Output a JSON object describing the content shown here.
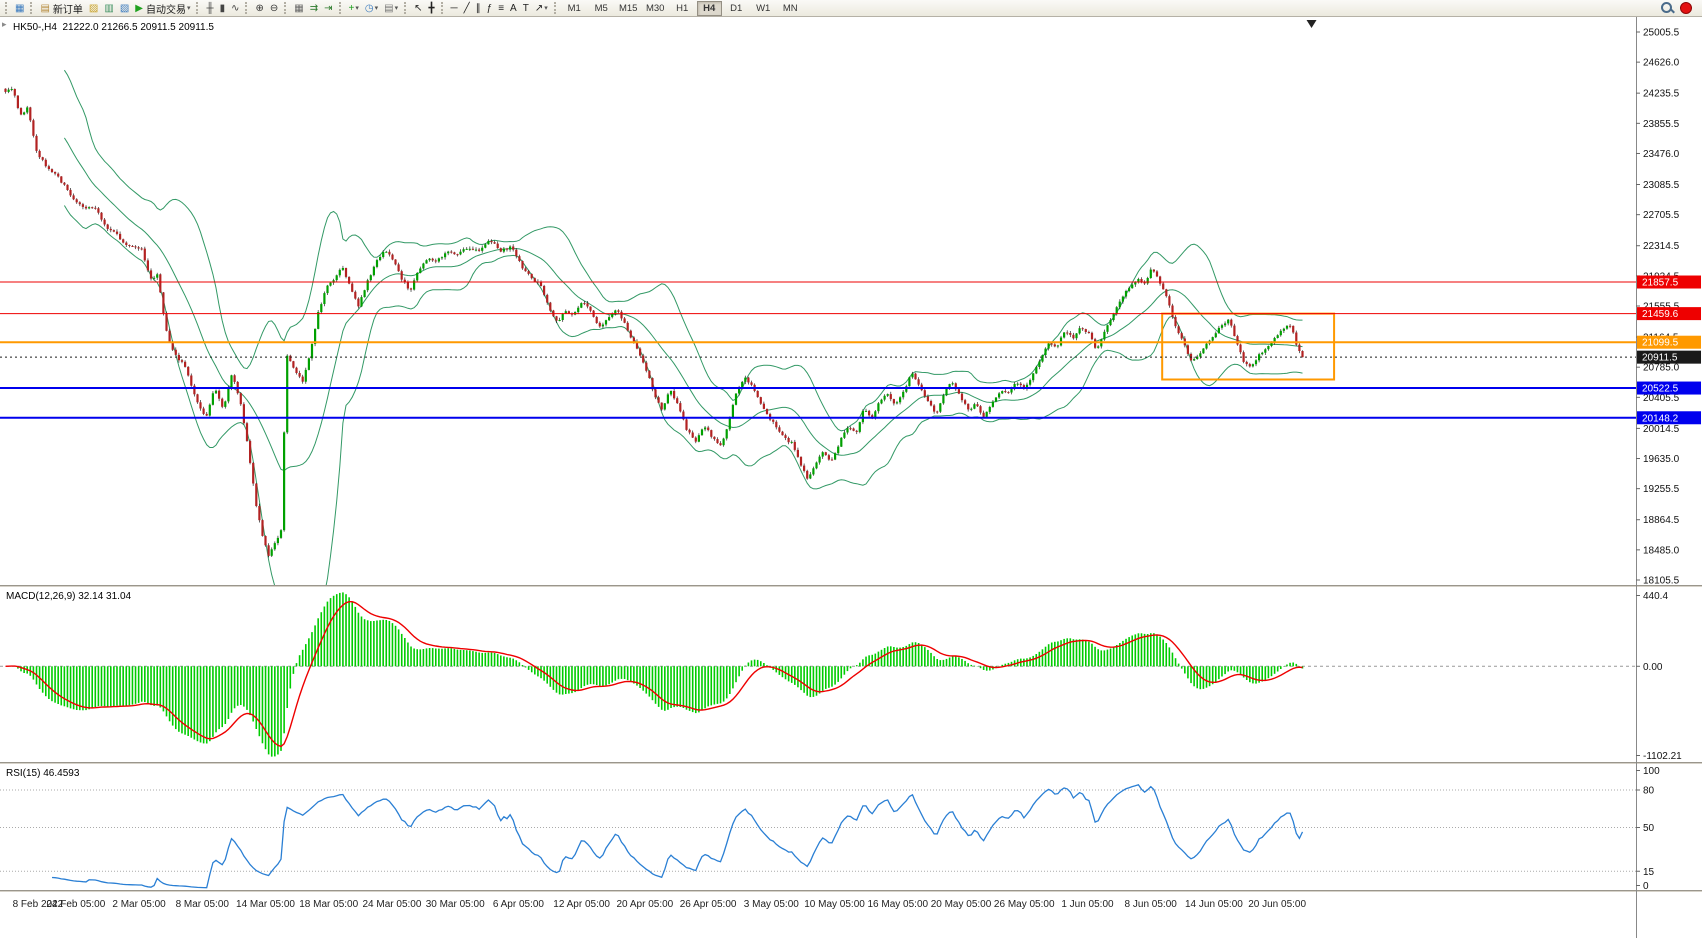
{
  "toolbar": {
    "groups": [
      {
        "items": [
          {
            "name": "new-chart",
            "glyph": "▦",
            "color": "#3a7abf",
            "caret": false
          }
        ]
      },
      {
        "items": [
          {
            "name": "new-order",
            "glyph": "▤",
            "color": "#b5893a",
            "label": "新订单"
          },
          {
            "name": "metaeditor",
            "glyph": "▨",
            "color": "#c9a227"
          },
          {
            "name": "market-watch",
            "glyph": "▥",
            "color": "#3a8f5f"
          },
          {
            "name": "navigator",
            "glyph": "▧",
            "color": "#3a7abf"
          },
          {
            "name": "auto-trading",
            "glyph": "▶",
            "color": "#1fa11f",
            "label": "自动交易",
            "caret": true
          }
        ]
      },
      {
        "items": [
          {
            "name": "bar-chart-mode",
            "glyph": "╫",
            "color": "#444"
          },
          {
            "name": "candlestick-mode",
            "glyph": "▮",
            "color": "#444"
          },
          {
            "name": "line-chart-mode",
            "glyph": "∿",
            "color": "#444"
          }
        ]
      },
      {
        "items": [
          {
            "name": "zoom-in",
            "glyph": "⊕",
            "color": "#333"
          },
          {
            "name": "zoom-out",
            "glyph": "⊖",
            "color": "#333"
          }
        ]
      },
      {
        "items": [
          {
            "name": "tile-windows",
            "glyph": "▦",
            "color": "#666"
          },
          {
            "name": "auto-scroll",
            "glyph": "⇉",
            "color": "#2c7a2c"
          },
          {
            "name": "chart-shift",
            "glyph": "⇥",
            "color": "#2c7a2c"
          }
        ]
      },
      {
        "items": [
          {
            "name": "indicators",
            "glyph": "+",
            "color": "#1fa11f",
            "caret": true
          },
          {
            "name": "periods",
            "glyph": "◷",
            "color": "#3a7abf",
            "caret": true
          },
          {
            "name": "templates",
            "glyph": "▤",
            "color": "#777",
            "caret": true
          }
        ]
      },
      {
        "items": [
          {
            "name": "cursor",
            "glyph": "↖",
            "color": "#222"
          },
          {
            "name": "crosshair",
            "glyph": "╋",
            "color": "#222"
          }
        ]
      },
      {
        "items": [
          {
            "name": "horizontal-line-tool",
            "glyph": "─",
            "color": "#222"
          },
          {
            "name": "trendline-tool",
            "glyph": "╱",
            "color": "#222"
          },
          {
            "name": "channel-tool",
            "glyph": "∥",
            "color": "#222"
          },
          {
            "name": "fibonacci-tool",
            "glyph": "ƒ",
            "color": "#222"
          },
          {
            "name": "ruler-tool",
            "glyph": "≡",
            "color": "#222"
          },
          {
            "name": "text-tool",
            "glyph": "A",
            "color": "#222"
          },
          {
            "name": "text-label-tool",
            "glyph": "T",
            "color": "#222"
          },
          {
            "name": "arrows-tool",
            "glyph": "↗",
            "color": "#222",
            "caret": true
          }
        ]
      }
    ],
    "timeframes": [
      "M1",
      "M5",
      "M15",
      "M30",
      "H1",
      "H4",
      "D1",
      "W1",
      "MN"
    ],
    "active_timeframe": "H4"
  },
  "chart_data": {
    "type": "candlestick",
    "symbol": "HK50-",
    "timeframe": "H4",
    "header": "HK50-,H4",
    "ohlc_line": "21222.0 21266.5 20911.5 20911.5",
    "y_range": [
      18105.5,
      25005.5
    ],
    "y_ticks": [
      "25005.5",
      "24626.0",
      "24235.5",
      "23855.5",
      "23476.0",
      "23085.5",
      "22705.5",
      "22314.5",
      "21934.5",
      "21555.5",
      "21164.5",
      "20785.0",
      "20405.5",
      "20014.5",
      "19635.0",
      "19255.5",
      "18864.5",
      "18485.0",
      "18105.5"
    ],
    "x_labels": [
      "8 Feb 2022",
      "24 Feb 05:00",
      "2 Mar 05:00",
      "8 Mar 05:00",
      "14 Mar 05:00",
      "18 Mar 05:00",
      "24 Mar 05:00",
      "30 Mar 05:00",
      "6 Apr 05:00",
      "12 Apr 05:00",
      "20 Apr 05:00",
      "26 Apr 05:00",
      "3 May 05:00",
      "10 May 05:00",
      "16 May 05:00",
      "20 May 05:00",
      "26 May 05:00",
      "1 Jun 05:00",
      "8 Jun 05:00",
      "14 Jun 05:00",
      "20 Jun 05:00"
    ],
    "bars_total": 420,
    "last_close": 20911.5,
    "up_color": "#00a000",
    "down_color": "#b22222",
    "close_path_keypoints": [
      [
        0,
        24250
      ],
      [
        8,
        24300
      ],
      [
        15,
        23950
      ],
      [
        22,
        24050
      ],
      [
        30,
        23500
      ],
      [
        40,
        23300
      ],
      [
        52,
        23150
      ],
      [
        62,
        22950
      ],
      [
        72,
        22800
      ],
      [
        85,
        22780
      ],
      [
        95,
        22550
      ],
      [
        105,
        22450
      ],
      [
        115,
        22300
      ],
      [
        128,
        22280
      ],
      [
        136,
        21900
      ],
      [
        143,
        21950
      ],
      [
        150,
        21300
      ],
      [
        158,
        20950
      ],
      [
        168,
        20820
      ],
      [
        178,
        20400
      ],
      [
        188,
        20150
      ],
      [
        196,
        20550
      ],
      [
        204,
        20250
      ],
      [
        212,
        20700
      ],
      [
        220,
        20350
      ],
      [
        228,
        19700
      ],
      [
        234,
        19100
      ],
      [
        240,
        18700
      ],
      [
        246,
        18400
      ],
      [
        252,
        18550
      ],
      [
        258,
        18750
      ],
      [
        263,
        20950
      ],
      [
        270,
        20750
      ],
      [
        278,
        20600
      ],
      [
        285,
        20950
      ],
      [
        292,
        21450
      ],
      [
        300,
        21800
      ],
      [
        308,
        21900
      ],
      [
        315,
        22050
      ],
      [
        322,
        21800
      ],
      [
        330,
        21550
      ],
      [
        338,
        21850
      ],
      [
        346,
        22100
      ],
      [
        354,
        22250
      ],
      [
        362,
        22150
      ],
      [
        370,
        21900
      ],
      [
        378,
        21750
      ],
      [
        386,
        22000
      ],
      [
        394,
        22150
      ],
      [
        402,
        22100
      ],
      [
        412,
        22250
      ],
      [
        422,
        22200
      ],
      [
        432,
        22300
      ],
      [
        442,
        22250
      ],
      [
        452,
        22400
      ],
      [
        462,
        22250
      ],
      [
        472,
        22300
      ],
      [
        482,
        22050
      ],
      [
        492,
        21900
      ],
      [
        500,
        21800
      ],
      [
        508,
        21500
      ],
      [
        515,
        21350
      ],
      [
        522,
        21500
      ],
      [
        530,
        21450
      ],
      [
        538,
        21620
      ],
      [
        546,
        21500
      ],
      [
        554,
        21300
      ],
      [
        562,
        21380
      ],
      [
        570,
        21520
      ],
      [
        578,
        21320
      ],
      [
        588,
        21050
      ],
      [
        598,
        20750
      ],
      [
        606,
        20400
      ],
      [
        613,
        20250
      ],
      [
        620,
        20500
      ],
      [
        628,
        20300
      ],
      [
        636,
        19980
      ],
      [
        644,
        19850
      ],
      [
        652,
        20050
      ],
      [
        660,
        19880
      ],
      [
        668,
        19800
      ],
      [
        675,
        20120
      ],
      [
        682,
        20500
      ],
      [
        690,
        20650
      ],
      [
        698,
        20520
      ],
      [
        706,
        20280
      ],
      [
        712,
        20150
      ],
      [
        718,
        20050
      ],
      [
        726,
        19900
      ],
      [
        734,
        19820
      ],
      [
        741,
        19580
      ],
      [
        748,
        19380
      ],
      [
        755,
        19560
      ],
      [
        762,
        19700
      ],
      [
        770,
        19600
      ],
      [
        778,
        19850
      ],
      [
        786,
        20050
      ],
      [
        793,
        19950
      ],
      [
        800,
        20250
      ],
      [
        808,
        20150
      ],
      [
        815,
        20350
      ],
      [
        822,
        20450
      ],
      [
        830,
        20300
      ],
      [
        838,
        20500
      ],
      [
        845,
        20720
      ],
      [
        852,
        20550
      ],
      [
        860,
        20350
      ],
      [
        868,
        20200
      ],
      [
        875,
        20450
      ],
      [
        882,
        20600
      ],
      [
        890,
        20420
      ],
      [
        898,
        20250
      ],
      [
        905,
        20320
      ],
      [
        912,
        20150
      ],
      [
        920,
        20350
      ],
      [
        928,
        20500
      ],
      [
        935,
        20450
      ],
      [
        942,
        20600
      ],
      [
        950,
        20500
      ],
      [
        958,
        20700
      ],
      [
        965,
        20900
      ],
      [
        972,
        21100
      ],
      [
        980,
        21050
      ],
      [
        988,
        21250
      ],
      [
        995,
        21150
      ],
      [
        1002,
        21300
      ],
      [
        1010,
        21200
      ],
      [
        1017,
        21000
      ],
      [
        1025,
        21250
      ],
      [
        1032,
        21450
      ],
      [
        1040,
        21650
      ],
      [
        1048,
        21800
      ],
      [
        1055,
        21900
      ],
      [
        1062,
        21830
      ],
      [
        1068,
        22020
      ],
      [
        1075,
        21880
      ],
      [
        1082,
        21680
      ],
      [
        1090,
        21320
      ],
      [
        1098,
        21080
      ],
      [
        1105,
        20850
      ],
      [
        1112,
        20950
      ],
      [
        1118,
        21050
      ],
      [
        1125,
        21150
      ],
      [
        1132,
        21300
      ],
      [
        1140,
        21380
      ],
      [
        1148,
        21080
      ],
      [
        1155,
        20820
      ],
      [
        1162,
        20800
      ],
      [
        1168,
        20950
      ],
      [
        1175,
        21020
      ],
      [
        1182,
        21150
      ],
      [
        1190,
        21260
      ],
      [
        1198,
        21320
      ],
      [
        1204,
        21000
      ],
      [
        1210,
        20911.5
      ]
    ],
    "bollinger": {
      "period": 20,
      "deviation": 2,
      "color": "#339966"
    },
    "horizontal_lines": [
      {
        "label": "21857.5",
        "price": 21857.5,
        "color": "#ee0000",
        "style": "solid",
        "width": 1
      },
      {
        "label": "21459.6",
        "price": 21459.6,
        "color": "#ee0000",
        "style": "solid",
        "width": 1
      },
      {
        "label": "21099.5",
        "price": 21099.5,
        "color": "#ff9900",
        "style": "solid",
        "width": 2
      },
      {
        "label": "20911.5",
        "price": 20911.5,
        "color": "#1a1a1a",
        "style": "dotted",
        "width": 1
      },
      {
        "label": "20522.5",
        "price": 20522.5,
        "color": "#0000ee",
        "style": "solid",
        "width": 2
      },
      {
        "label": "20148.2",
        "price": 20148.2,
        "color": "#0000ee",
        "style": "solid",
        "width": 2
      }
    ],
    "rectangle": {
      "x_from": 1078,
      "x_to": 1238,
      "price_top": 21459.6,
      "price_bottom": 20630,
      "color": "#ff9900"
    },
    "scroll_marker_x": 1217,
    "macd": {
      "label": "MACD(12,26,9) 32.14 31.04",
      "fast": 12,
      "slow": 26,
      "signal": 9,
      "values": [
        32.14,
        31.04
      ],
      "axis_labels": [
        "440.4",
        "0.00",
        "-1102.21"
      ],
      "histogram_color": "#00cc00",
      "signal_color": "#ee0000"
    },
    "rsi": {
      "label": "RSI(15) 46.4593",
      "period": 15,
      "value": 46.4593,
      "levels": [
        80,
        50,
        15
      ],
      "axis_labels": [
        "100",
        "80",
        "50",
        "15",
        "0"
      ],
      "color": "#2a7fd4"
    }
  }
}
